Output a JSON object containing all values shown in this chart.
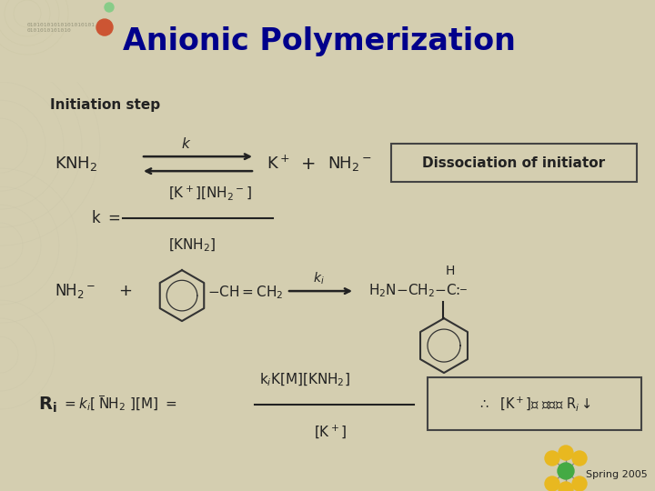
{
  "title": "Anionic Polymerization",
  "subtitle": "Initiation step",
  "title_color": "#00008B",
  "subtitle_color": "#000000",
  "header_bg_color": "#B0AA88",
  "body_bg_color": "#D4CEB0",
  "box1_text": "Dissociation of initiator",
  "box1_bg": "#D4CEB0",
  "box1_border": "#444444",
  "box2_border": "#444444",
  "spring_text": "Spring 2005",
  "concentric_color": "#C8C4A8",
  "text_color": "#222222"
}
